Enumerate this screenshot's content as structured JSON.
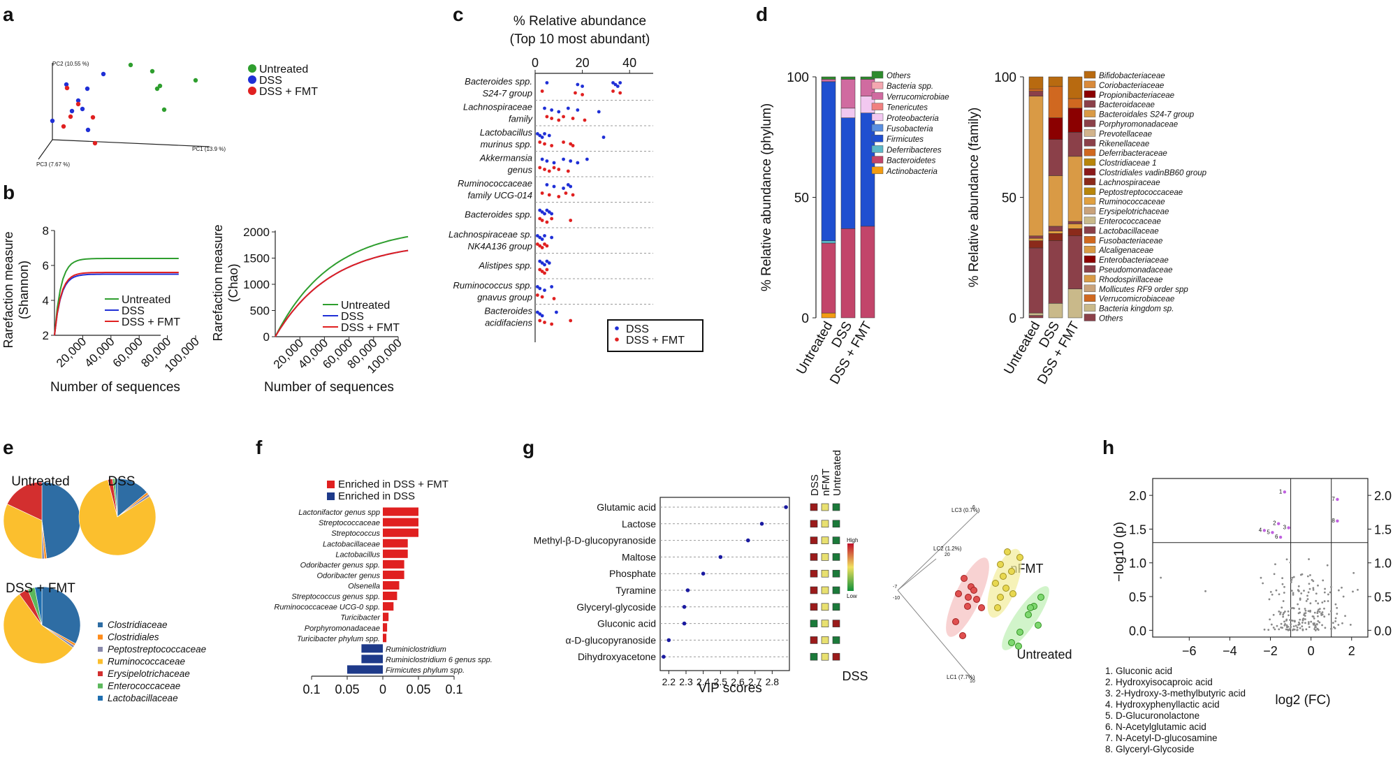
{
  "panel_labels": [
    "a",
    "b",
    "c",
    "d",
    "e",
    "f",
    "g",
    "h"
  ],
  "colors": {
    "untreated": "#2e9e2e",
    "dss": "#1f2fd6",
    "dss_fmt": "#e02020",
    "pcaline": "#888"
  },
  "chart_data": [
    {
      "panel": "a",
      "type": "scatter",
      "title": "",
      "axes": {
        "pc1": "PC1 (13.9 %)",
        "pc2": "PC2 (10.55 %)",
        "pc3": "PC3 (7.67 %)"
      },
      "legend": [
        "Untreated",
        "DSS",
        "DSS + FMT"
      ]
    },
    {
      "panel": "b1",
      "type": "line",
      "xlabel": "Number of sequences",
      "ylabel": "Rarefaction measure (Shannon)",
      "xticks": [
        "20,000",
        "40,000",
        "60,000",
        "80,000",
        "100,000"
      ],
      "yticks": [
        "2",
        "4",
        "6",
        "8"
      ],
      "ylim": [
        2,
        8
      ],
      "series": [
        {
          "name": "Untreated",
          "final": 6.4
        },
        {
          "name": "DSS",
          "final": 5.5
        },
        {
          "name": "DSS + FMT",
          "final": 5.6
        }
      ]
    },
    {
      "panel": "b2",
      "type": "line",
      "xlabel": "Number of sequences",
      "ylabel": "Rarefaction measure (Chao)",
      "xticks": [
        "20,000",
        "40,000",
        "60,000",
        "80,000",
        "100,000"
      ],
      "yticks": [
        "0",
        "500",
        "1000",
        "1500",
        "2000"
      ],
      "ylim": [
        0,
        2000
      ],
      "series": [
        {
          "name": "Untreated",
          "final": 1880
        },
        {
          "name": "DSS",
          "final": 1620
        },
        {
          "name": "DSS + FMT",
          "final": 1620
        }
      ]
    },
    {
      "panel": "c",
      "type": "scatter",
      "title": "% Relative abundance",
      "subtitle": "(Top 10 most abundant)",
      "xticks": [
        "0",
        "20",
        "40"
      ],
      "xlim": [
        0,
        50
      ],
      "taxa": [
        {
          "l1": "Bacteroides spp.",
          "l2": "S24-7 group",
          "dss": [
            5,
            18,
            20,
            33,
            34,
            35,
            36
          ],
          "fmt": [
            3,
            17,
            20,
            33,
            36
          ]
        },
        {
          "l1": "Lachnospiraceae",
          "l2": "family",
          "dss": [
            4,
            7,
            10,
            14,
            18,
            27
          ],
          "fmt": [
            5,
            7,
            10,
            12,
            16,
            21
          ]
        },
        {
          "l1": "Lactobacillus",
          "l2": "murinus spp.",
          "dss": [
            1,
            2,
            3,
            4,
            6,
            29
          ],
          "fmt": [
            2,
            4,
            7,
            12,
            15,
            16
          ]
        },
        {
          "l1": "Akkermansia",
          "l2": "genus",
          "dss": [
            3,
            5,
            8,
            12,
            15,
            18,
            22
          ],
          "fmt": [
            2,
            4,
            6,
            8,
            10,
            14
          ]
        },
        {
          "l1": "Ruminococcaceae",
          "l2": "family UCG-014",
          "dss": [
            5,
            8,
            12,
            14,
            15
          ],
          "fmt": [
            3,
            6,
            10,
            13,
            16
          ]
        },
        {
          "l1": "Bacteroides spp.",
          "l2": "",
          "dss": [
            2,
            3,
            4,
            5,
            6,
            7
          ],
          "fmt": [
            2,
            3,
            5,
            7,
            15
          ]
        },
        {
          "l1": "Lachnospiraceae sp.",
          "l2": "NK4A136 group",
          "dss": [
            1,
            2,
            3,
            4,
            7
          ],
          "fmt": [
            1,
            2,
            3,
            4,
            5
          ]
        },
        {
          "l1": "Alistipes spp.",
          "l2": "",
          "dss": [
            2,
            3,
            4,
            5,
            6
          ],
          "fmt": [
            2,
            3,
            4,
            5
          ]
        },
        {
          "l1": "Ruminococcus spp.",
          "l2": "gnavus group",
          "dss": [
            1,
            2,
            4,
            7
          ],
          "fmt": [
            1,
            3,
            8
          ]
        },
        {
          "l1": "Bacteroides",
          "l2": "acidifaciens",
          "dss": [
            1,
            2,
            3,
            9
          ],
          "fmt": [
            2,
            4,
            7,
            15
          ]
        }
      ],
      "legend": [
        "DSS",
        "DSS + FMT"
      ]
    },
    {
      "panel": "d1",
      "type": "bar",
      "ylabel": "% Relative abundance (phylum)",
      "yticks": [
        "0",
        "50",
        "100"
      ],
      "ylim": [
        0,
        100
      ],
      "categories": [
        "Untreated",
        "DSS",
        "DSS + FMT"
      ],
      "legend": [
        "Others",
        "Bacteria spp.",
        "Verrucomicrobiae",
        "Tenericutes",
        "Proteobacteria",
        "Fusobacteria",
        "Firmicutes",
        "Deferribacteres",
        "Bacteroidetes",
        "Actinobacteria"
      ],
      "series": [
        {
          "name": "Actinobacteria",
          "color": "#f39c12",
          "values": [
            2,
            0,
            0
          ]
        },
        {
          "name": "Bacteroidetes",
          "color": "#c2456a",
          "values": [
            29,
            37,
            38
          ]
        },
        {
          "name": "Deferribacteres",
          "color": "#5bb8c8",
          "values": [
            1,
            0,
            0
          ]
        },
        {
          "name": "Firmicutes",
          "color": "#1f4fd0",
          "values": [
            66,
            46,
            47
          ]
        },
        {
          "name": "Fusobacteria",
          "color": "#5a8fe0",
          "values": [
            0,
            0,
            0
          ]
        },
        {
          "name": "Proteobacteria",
          "color": "#f2c8f0",
          "values": [
            0,
            4,
            7
          ]
        },
        {
          "name": "Tenericutes",
          "color": "#f08080",
          "values": [
            0,
            0,
            0
          ]
        },
        {
          "name": "Verrucomicrobiae",
          "color": "#d06ba0",
          "values": [
            1,
            12,
            7
          ]
        },
        {
          "name": "Bacteria spp.",
          "color": "#f4a7b0",
          "values": [
            0,
            0,
            0
          ]
        },
        {
          "name": "Others",
          "color": "#2e8b2e",
          "values": [
            1,
            1,
            1
          ]
        }
      ]
    },
    {
      "panel": "d2",
      "type": "bar",
      "ylabel": "% Relative abundance (family)",
      "yticks": [
        "0",
        "50",
        "100"
      ],
      "ylim": [
        0,
        100
      ],
      "categories": [
        "Untreated",
        "DSS",
        "DSS + FMT"
      ],
      "legend": [
        "Bifidobacteriaceae",
        "Coriobacteriaceae",
        "Propionibacteriaceae",
        "Bacteroidaceae",
        "Bacteroidales S24-7 group",
        "Porphyromonadaceae",
        "Prevotellaceae",
        "Rikenellaceae",
        "Deferribacteraceae",
        "Clostridiaceae 1",
        "Clostridiales vadinBB60 group",
        "Lachnospiraceae",
        "Peptostreptococcaceae",
        "Ruminococcaceae",
        "Erysipelotrichaceae",
        "Enterococcaceae",
        "Lactobacillaceae",
        "Fusobacteriaceae",
        "Alcaligenaceae",
        "Enterobacteriaceae",
        "Pseudomonadaceae",
        "Rhodospirillaceae",
        "Mollicutes RF9 order spp",
        "Verrucomicrobiaceae",
        "Bacteria kingdom sp.",
        "Others"
      ],
      "series": [
        {
          "name": "Others",
          "color": "#8b4049",
          "values": [
            1,
            0,
            0
          ]
        },
        {
          "name": "Bacteria kingdom sp.",
          "color": "#c9b98a",
          "values": [
            1,
            6,
            12
          ]
        },
        {
          "name": "Lactobacillaceae",
          "color": "#8b4049",
          "values": [
            27,
            26,
            22
          ]
        },
        {
          "name": "Lachnospiraceae",
          "color": "#8b2a1a",
          "values": [
            3,
            3,
            3
          ]
        },
        {
          "name": "Ruminococcaceae",
          "color": "#e0a040",
          "values": [
            1,
            1,
            2
          ]
        },
        {
          "name": "Porphyromonadaceae",
          "color": "#8b4049",
          "values": [
            1,
            2,
            1
          ]
        },
        {
          "name": "Bacteroidales S24-7 group",
          "color": "#d99a45",
          "values": [
            58,
            21,
            27
          ]
        },
        {
          "name": "Bacteroidaceae",
          "color": "#8b4049",
          "values": [
            2,
            15,
            10
          ]
        },
        {
          "name": "Enterobacteriaceae",
          "color": "#8b0000",
          "values": [
            0,
            9,
            10
          ]
        },
        {
          "name": "Verrucomicrobiaceae",
          "color": "#d06820",
          "values": [
            1,
            13,
            4
          ]
        },
        {
          "name": "Bifidobacteriaceae",
          "color": "#b86a10",
          "values": [
            5,
            4,
            9
          ]
        }
      ]
    },
    {
      "panel": "e",
      "type": "pie",
      "pies": [
        {
          "title": "Untreated",
          "values": [
            48,
            1,
            1,
            32,
            18,
            0,
            0
          ]
        },
        {
          "title": "DSS",
          "values": [
            14,
            1,
            1,
            80,
            2,
            1,
            1
          ]
        },
        {
          "title": "DSS + FMT",
          "values": [
            33,
            1,
            1,
            55,
            4,
            3,
            3
          ]
        }
      ],
      "legend": [
        "Clostridiaceae",
        "Clostridiales",
        "Peptostreptococcaceae",
        "Ruminococcaceae",
        "Erysipelotrichaceae",
        "Enterococcaceae",
        "Lactobacillaceae"
      ],
      "slice_colors": [
        "#2e6da4",
        "#ff8c1a",
        "#8888aa",
        "#fbbf2e",
        "#d32f2f",
        "#5cb85c",
        "#1f6fb0"
      ]
    },
    {
      "panel": "f",
      "type": "bar",
      "orientation": "horizontal",
      "xticks": [
        "0.1",
        "0.05",
        "0",
        "0.05",
        "0.1"
      ],
      "xlim": [
        -0.1,
        0.1
      ],
      "legend": [
        "Enriched in DSS + FMT",
        "Enriched in DSS"
      ],
      "bars": [
        {
          "label": "Lactonifactor genus spp",
          "value": 0.05
        },
        {
          "label": "Streptococcaceae",
          "value": 0.05
        },
        {
          "label": "Streptococcus",
          "value": 0.05
        },
        {
          "label": "Lactobacillaceae",
          "value": 0.035
        },
        {
          "label": "Lactobacillus",
          "value": 0.035
        },
        {
          "label": "Odoribacter genus spp.",
          "value": 0.03
        },
        {
          "label": "Odoribacter genus",
          "value": 0.03
        },
        {
          "label": "Olsenella",
          "value": 0.023
        },
        {
          "label": "Streptococcus genus spp.",
          "value": 0.02
        },
        {
          "label": "Ruminococcaceae UCG-0 spp.",
          "value": 0.015
        },
        {
          "label": "Turicibacter",
          "value": 0.008
        },
        {
          "label": "Porphyromonadaceae",
          "value": 0.006
        },
        {
          "label": "Turicibacter phylum spp.",
          "value": 0.005
        },
        {
          "label": "Ruminiclostridium",
          "value": -0.03
        },
        {
          "label": "Ruminiclostridium 6 genus spp.",
          "value": -0.03
        },
        {
          "label": "Firmicutes phylum spp.",
          "value": -0.05
        }
      ]
    },
    {
      "panel": "g",
      "type": "scatter",
      "xlabel": "VIP scores",
      "xticks": [
        "2.2",
        "2.3",
        "2.4",
        "2.5",
        "2.6",
        "2.7",
        "2.8"
      ],
      "xlim": [
        2.15,
        2.9
      ],
      "points": [
        {
          "label": "Glutamic acid",
          "value": 2.88
        },
        {
          "label": "Lactose",
          "value": 2.74
        },
        {
          "label": "Methyl-β-D-glucopyranoside",
          "value": 2.66
        },
        {
          "label": "Maltose",
          "value": 2.5
        },
        {
          "label": "Phosphate",
          "value": 2.4
        },
        {
          "label": "Tyramine",
          "value": 2.31
        },
        {
          "label": "Glyceryl-glycoside",
          "value": 2.29
        },
        {
          "label": "Gluconic acid",
          "value": 2.29
        },
        {
          "label": "α-D-glucopyranoside",
          "value": 2.2
        },
        {
          "label": "Dihydroxyacetone",
          "value": 2.17
        }
      ],
      "heat_columns": [
        "DSS",
        "nFMT",
        "Untreated"
      ],
      "heat_scale": [
        "High",
        "Low"
      ],
      "heat": [
        [
          "#9b1b1b",
          "#e8e070",
          "#1b7a3a"
        ],
        [
          "#9b1b1b",
          "#e8e070",
          "#1b7a3a"
        ],
        [
          "#9b1b1b",
          "#e8e070",
          "#1b7a3a"
        ],
        [
          "#9b1b1b",
          "#e8e070",
          "#1b7a3a"
        ],
        [
          "#9b1b1b",
          "#e8e070",
          "#1b7a3a"
        ],
        [
          "#9b1b1b",
          "#e8e070",
          "#1b7a3a"
        ],
        [
          "#9b1b1b",
          "#e8e070",
          "#1b7a3a"
        ],
        [
          "#1b7a3a",
          "#e8e070",
          "#9b1b1b"
        ],
        [
          "#9b1b1b",
          "#e8e070",
          "#1b7a3a"
        ],
        [
          "#1b7a3a",
          "#e8e070",
          "#9b1b1b"
        ]
      ],
      "pca": {
        "axes": [
          "LC3 (0.7%)",
          "LC2 (1.2%)",
          "LC1 (7.7%)"
        ],
        "ticks": [
          "6",
          "20",
          "-7",
          "-10",
          "10"
        ],
        "groups": [
          "DSS",
          "nFMT",
          "Untreated"
        ]
      }
    },
    {
      "panel": "h",
      "type": "scatter",
      "xlabel": "log2 (FC)",
      "ylabel": "−log10 (p)",
      "xticks": [
        "−6",
        "−4",
        "−2",
        "0",
        "2"
      ],
      "yticks": [
        "0.0",
        "0.5",
        "1.0",
        "1.5",
        "2.0"
      ],
      "xlim": [
        -7.8,
        2.8
      ],
      "ylim": [
        -0.1,
        2.25
      ],
      "thresholds": {
        "p": 1.3,
        "fc": [
          -1,
          1
        ]
      },
      "labeled": [
        {
          "id": "1",
          "name": "1. Gluconic acid",
          "x": -1.3,
          "y": 2.05
        },
        {
          "id": "2",
          "name": "2. Hydroxyisocaproic acid",
          "x": -1.6,
          "y": 1.58
        },
        {
          "id": "3",
          "name": "3. 2-Hydroxy-3-methylbutyric acid",
          "x": -1.1,
          "y": 1.52
        },
        {
          "id": "4",
          "name": "4. Hydroxyphenyllactic acid",
          "x": -2.3,
          "y": 1.48
        },
        {
          "id": "5",
          "name": "5. D-Glucuronolactone",
          "x": -1.9,
          "y": 1.45
        },
        {
          "id": "6",
          "name": "6. N-Acetylglutamic acid",
          "x": -1.5,
          "y": 1.38
        },
        {
          "id": "7",
          "name": "7. N-Acetyl-D-glucosamine",
          "x": 1.3,
          "y": 1.94
        },
        {
          "id": "8",
          "name": "8. Glyceryl-Glycoside",
          "x": 1.3,
          "y": 1.62
        }
      ]
    }
  ]
}
